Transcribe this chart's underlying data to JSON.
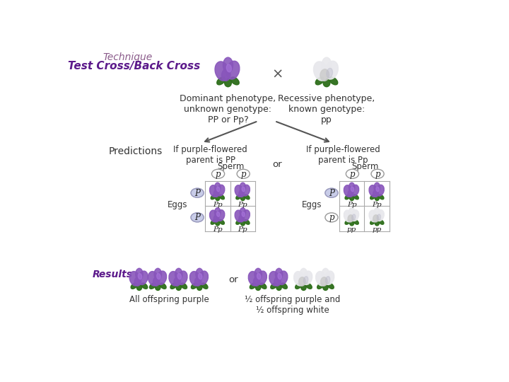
{
  "title": "Technique",
  "subtitle": "Test Cross/Back Cross",
  "title_color": "#8b5c8b",
  "subtitle_color": "#5c1a8b",
  "background_color": "#ffffff",
  "dominant_label": "Dominant phenotype,\nunknown genotype:\nPP or Pp?",
  "recessive_label": "Recessive phenotype,\nknown genotype:\npp",
  "predictions_label": "Predictions",
  "results_label": "Results",
  "if_PP_label": "If purple-flowered\nparent is PP",
  "if_Pp_label": "If purple-flowered\nparent is Pp",
  "sperm_label": "Sperm",
  "eggs_label": "Eggs",
  "or_label": "or",
  "all_purple_label": "All offspring purple",
  "half_label": "½ offspring purple and\n½ offspring white",
  "purple_color": "#8855bb",
  "white_color": "#d8d8e0",
  "text_color": "#333333",
  "grid_color": "#aaaaaa",
  "sperm_oval_fill": "#ffffff",
  "sperm_oval_border": "#999999",
  "egg_oval_fill_P": "#c8cce8",
  "egg_oval_fill_p": "#ffffff",
  "egg_oval_border_P": "#9999bb",
  "egg_oval_border_p": "#999999"
}
